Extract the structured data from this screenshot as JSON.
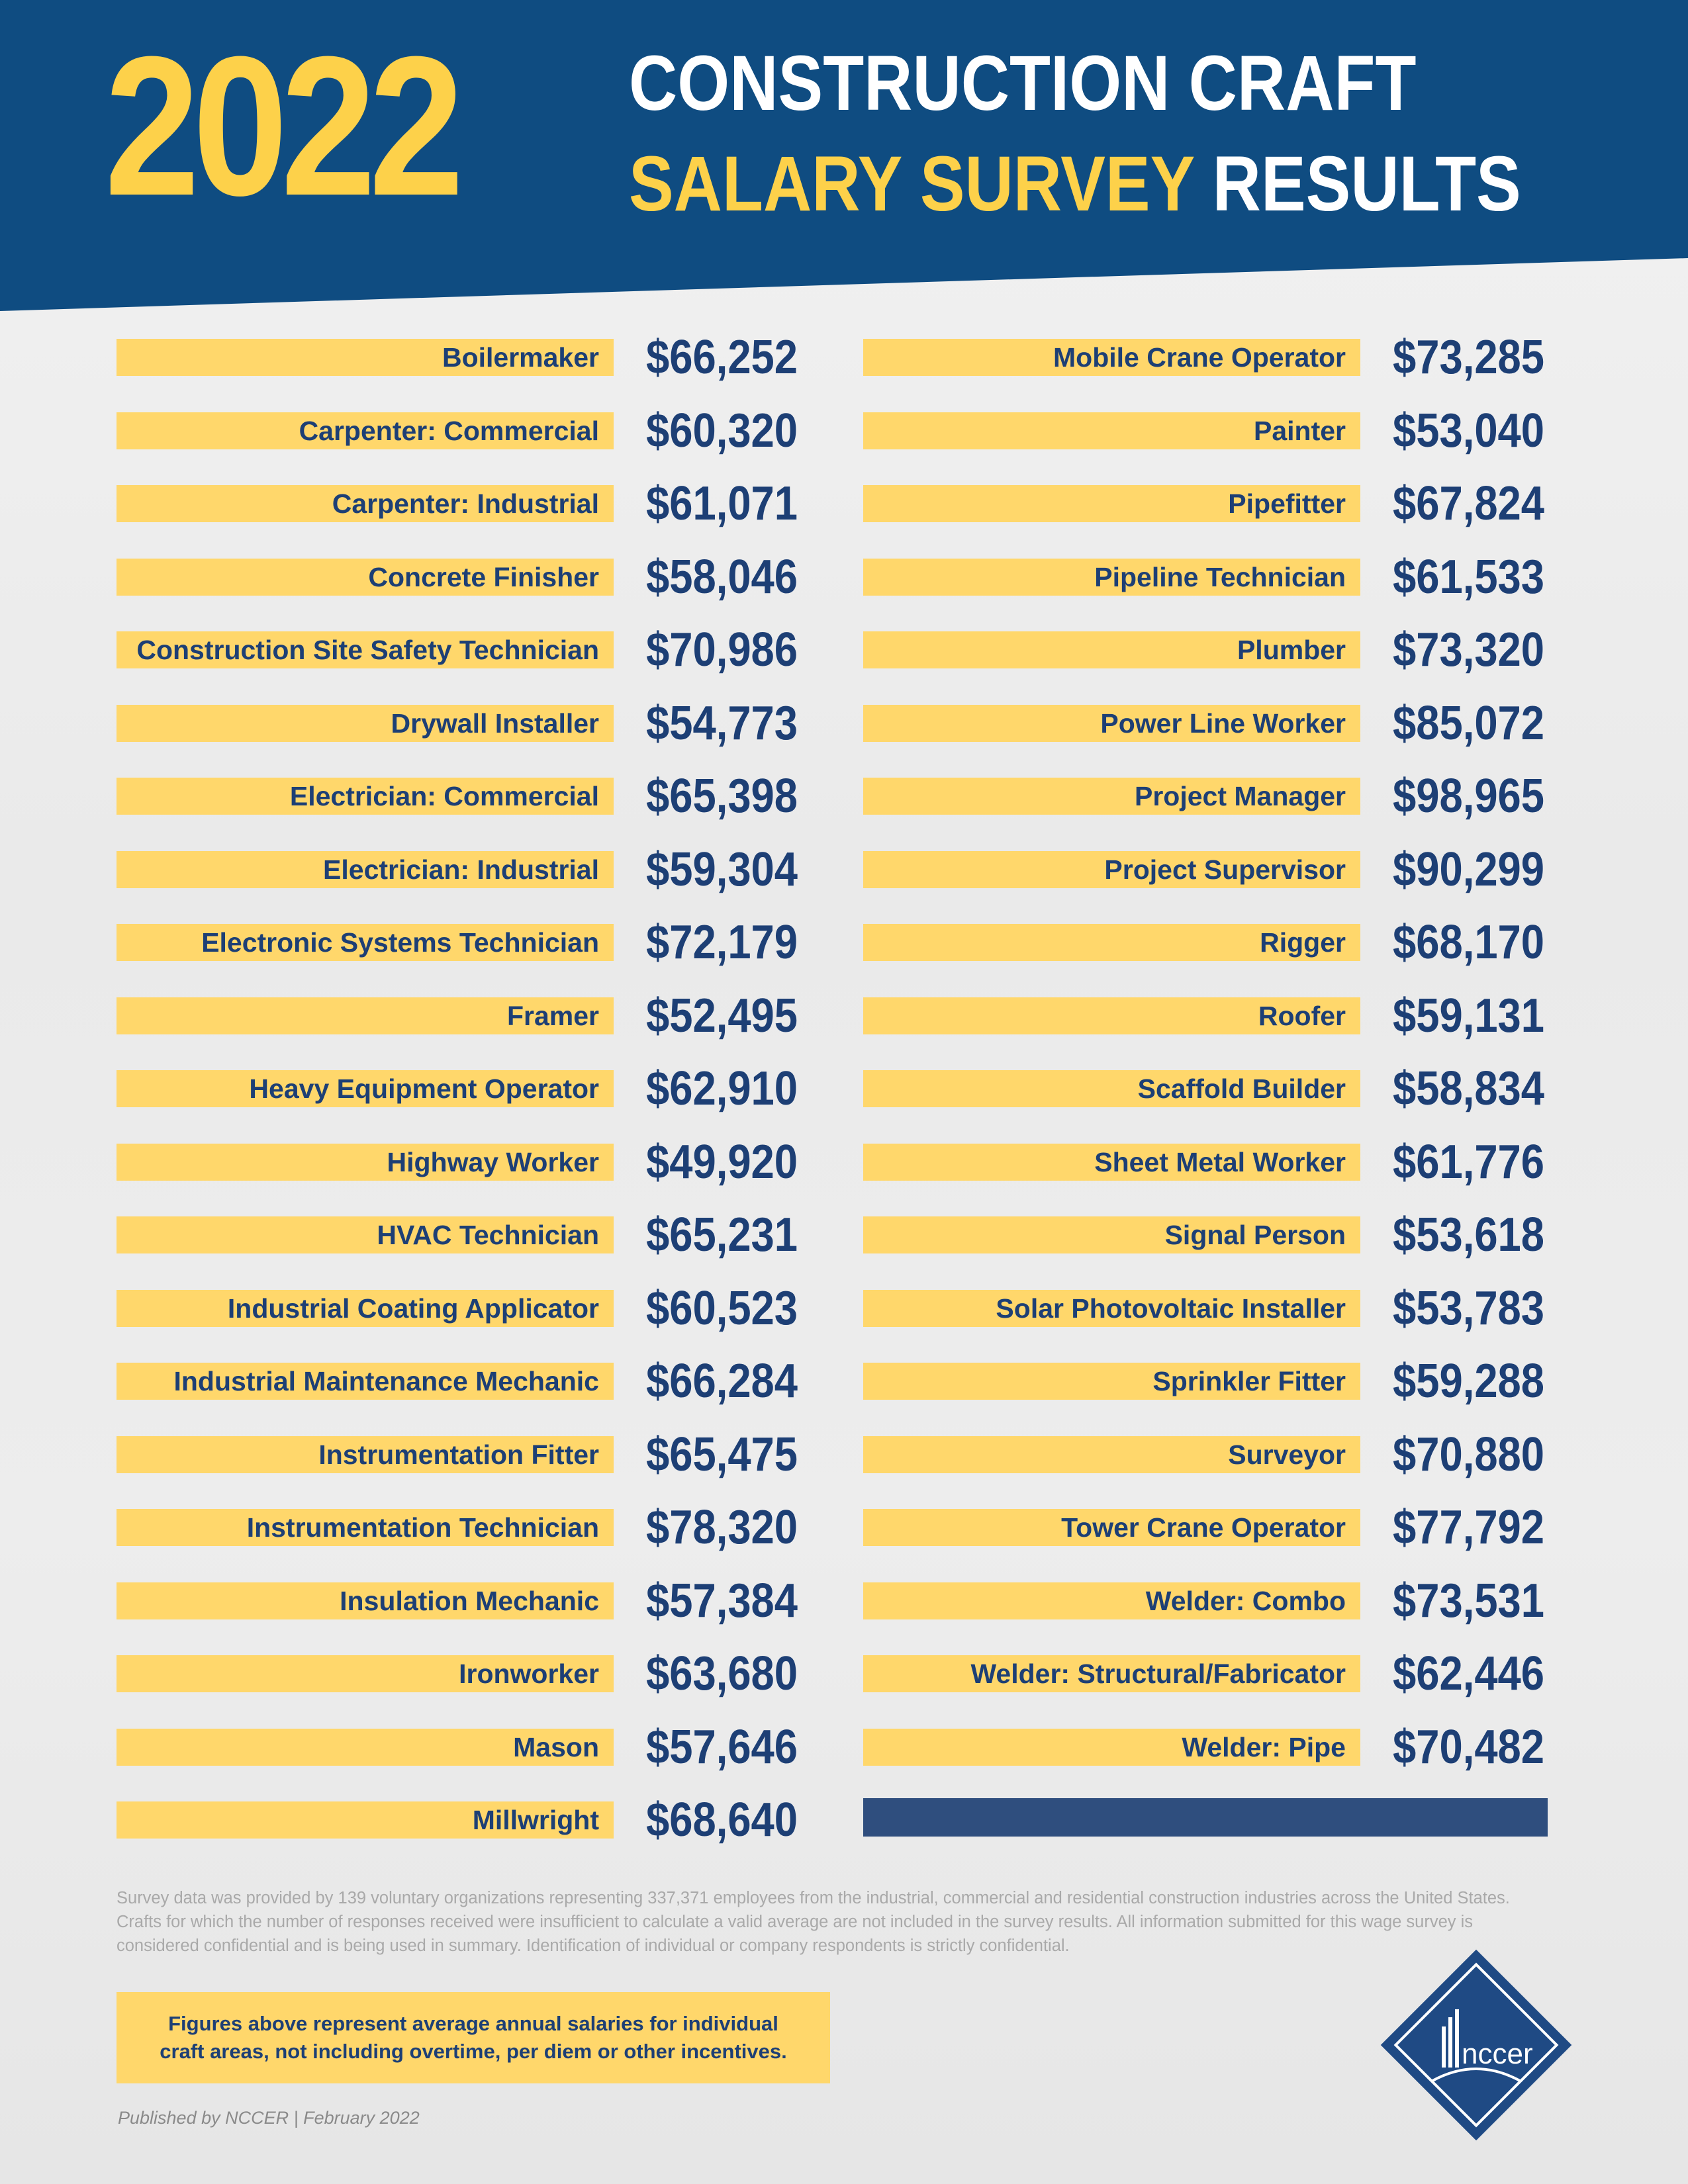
{
  "header": {
    "year": "2022",
    "title_line1": "CONSTRUCTION CRAFT",
    "title_line2_accent": "SALARY SURVEY",
    "title_line2_rest": " RESULTS"
  },
  "left_column": [
    {
      "craft": "Boilermaker",
      "salary": "$66,252"
    },
    {
      "craft": "Carpenter: Commercial",
      "salary": "$60,320"
    },
    {
      "craft": "Carpenter: Industrial",
      "salary": "$61,071"
    },
    {
      "craft": "Concrete Finisher",
      "salary": "$58,046"
    },
    {
      "craft": "Construction Site Safety Technician",
      "salary": "$70,986"
    },
    {
      "craft": "Drywall Installer",
      "salary": "$54,773"
    },
    {
      "craft": "Electrician: Commercial",
      "salary": "$65,398"
    },
    {
      "craft": "Electrician: Industrial",
      "salary": "$59,304"
    },
    {
      "craft": "Electronic Systems Technician",
      "salary": "$72,179"
    },
    {
      "craft": "Framer",
      "salary": "$52,495"
    },
    {
      "craft": "Heavy Equipment Operator",
      "salary": "$62,910"
    },
    {
      "craft": "Highway Worker",
      "salary": "$49,920"
    },
    {
      "craft": "HVAC Technician",
      "salary": "$65,231"
    },
    {
      "craft": "Industrial Coating Applicator",
      "salary": "$60,523"
    },
    {
      "craft": "Industrial Maintenance Mechanic",
      "salary": "$66,284"
    },
    {
      "craft": "Instrumentation Fitter",
      "salary": "$65,475"
    },
    {
      "craft": "Instrumentation Technician",
      "salary": "$78,320"
    },
    {
      "craft": "Insulation Mechanic",
      "salary": "$57,384"
    },
    {
      "craft": "Ironworker",
      "salary": "$63,680"
    },
    {
      "craft": "Mason",
      "salary": "$57,646"
    },
    {
      "craft": "Millwright",
      "salary": "$68,640"
    }
  ],
  "right_column": [
    {
      "craft": "Mobile Crane Operator",
      "salary": "$73,285"
    },
    {
      "craft": "Painter",
      "salary": "$53,040"
    },
    {
      "craft": "Pipefitter",
      "salary": "$67,824"
    },
    {
      "craft": "Pipeline Technician",
      "salary": "$61,533"
    },
    {
      "craft": "Plumber",
      "salary": "$73,320"
    },
    {
      "craft": "Power Line Worker",
      "salary": "$85,072"
    },
    {
      "craft": "Project Manager",
      "salary": "$98,965"
    },
    {
      "craft": "Project Supervisor",
      "salary": "$90,299"
    },
    {
      "craft": "Rigger",
      "salary": "$68,170"
    },
    {
      "craft": "Roofer",
      "salary": "$59,131"
    },
    {
      "craft": "Scaffold Builder",
      "salary": "$58,834"
    },
    {
      "craft": "Sheet Metal Worker",
      "salary": "$61,776"
    },
    {
      "craft": "Signal Person",
      "salary": "$53,618"
    },
    {
      "craft": "Solar Photovoltaic Installer",
      "salary": "$53,783"
    },
    {
      "craft": "Sprinkler Fitter",
      "salary": "$59,288"
    },
    {
      "craft": "Surveyor",
      "salary": "$70,880"
    },
    {
      "craft": "Tower Crane Operator",
      "salary": "$77,792"
    },
    {
      "craft": "Welder: Combo",
      "salary": "$73,531"
    },
    {
      "craft": "Welder: Structural/Fabricator",
      "salary": "$62,446"
    },
    {
      "craft": "Welder: Pipe",
      "salary": "$70,482"
    }
  ],
  "disclaimer": "Survey data was provided by 139 voluntary organizations representing 337,371 employees from the industrial, commercial and residential construction industries across the United States. Crafts for which the number of responses received were insufficient to calculate a valid average are not included in the survey results. All information submitted for this wage survey is considered confidential and is being used in summary. Identification of individual or company respondents is strictly confidential.",
  "note": "Figures above represent average annual salaries for individual craft areas, not including overtime, per diem or other incentives.",
  "published": "Published by NCCER | February 2022",
  "logo": {
    "text": "nccer",
    "icon": "nccer-logo-icon"
  },
  "colors": {
    "navy": "#0f4c81",
    "text_navy": "#1d3f75",
    "yellow": "#ffd76b",
    "gold": "#fdd14a"
  }
}
